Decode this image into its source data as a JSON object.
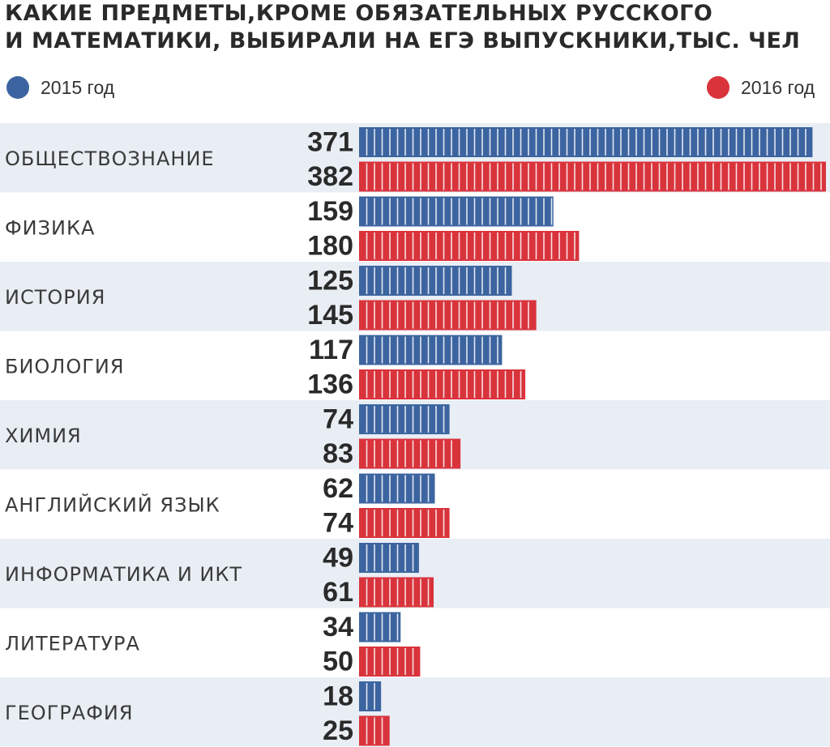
{
  "title_lines": [
    "КАКИЕ ПРЕДМЕТЫ,КРОМЕ ОБЯЗАТЕЛЬНЫХ РУССКОГО",
    "И МАТЕМАТИКИ, ВЫБИРАЛИ НА ЕГЭ ВЫПУСКНИКИ,ТЫС. ЧЕЛ"
  ],
  "legend": {
    "s2015": "2015 год",
    "s2016": "2016 год"
  },
  "colors": {
    "s2015": "#3c64a0",
    "s2016": "#d9333c",
    "band": "#e8eef4",
    "text": "#2a2a2a"
  },
  "chart_data": {
    "type": "bar",
    "orientation": "horizontal",
    "title": "КАКИЕ ПРЕДМЕТЫ,КРОМЕ ОБЯЗАТЕЛЬНЫХ РУССКОГО И МАТЕМАТИКИ, ВЫБИРАЛИ НА ЕГЭ ВЫПУСКНИКИ,ТЫС. ЧЕЛ",
    "categories": [
      "ОБЩЕСТВОЗНАНИЕ",
      "ФИЗИКА",
      "ИСТОРИЯ",
      "БИОЛОГИЯ",
      "ХИМИЯ",
      "АНГЛИЙСКИЙ ЯЗЫК",
      "ИНФОРМАТИКА И ИКТ",
      "ЛИТЕРАТУРА",
      "ГЕОГРАФИЯ"
    ],
    "series": [
      {
        "name": "2015 год",
        "values": [
          371,
          159,
          125,
          117,
          74,
          62,
          49,
          34,
          18
        ]
      },
      {
        "name": "2016 год",
        "values": [
          382,
          180,
          145,
          136,
          83,
          74,
          61,
          50,
          25
        ]
      }
    ],
    "xlim": [
      0,
      382
    ],
    "legend_position": "top",
    "grid": false
  }
}
